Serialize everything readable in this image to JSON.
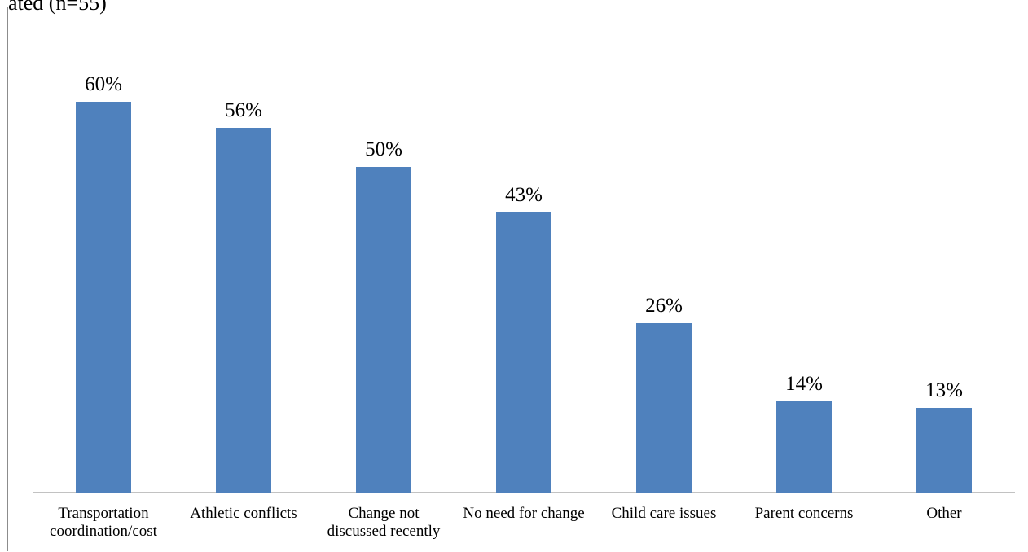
{
  "chart_data": {
    "type": "bar",
    "title": "ated (n=55)",
    "xlabel": "",
    "ylabel": "",
    "ylim": [
      0,
      70
    ],
    "grid": false,
    "legend": "none",
    "bar_color": "#4f81bd",
    "categories": [
      "Transportation coordination/cost",
      "Athletic conflicts",
      "Change not discussed recently",
      "No need for change",
      "Child care issues",
      "Parent concerns",
      "Other"
    ],
    "category_lines": [
      [
        "Transportation",
        "coordination/cost"
      ],
      [
        "Athletic conflicts"
      ],
      [
        "Change not",
        "discussed recently"
      ],
      [
        "No need for change"
      ],
      [
        "Child care issues"
      ],
      [
        "Parent concerns"
      ],
      [
        "Other"
      ]
    ],
    "values": [
      60,
      56,
      50,
      43,
      26,
      14,
      13
    ],
    "data_labels": [
      "60%",
      "56%",
      "50%",
      "43%",
      "26%",
      "14%",
      "13%"
    ]
  }
}
